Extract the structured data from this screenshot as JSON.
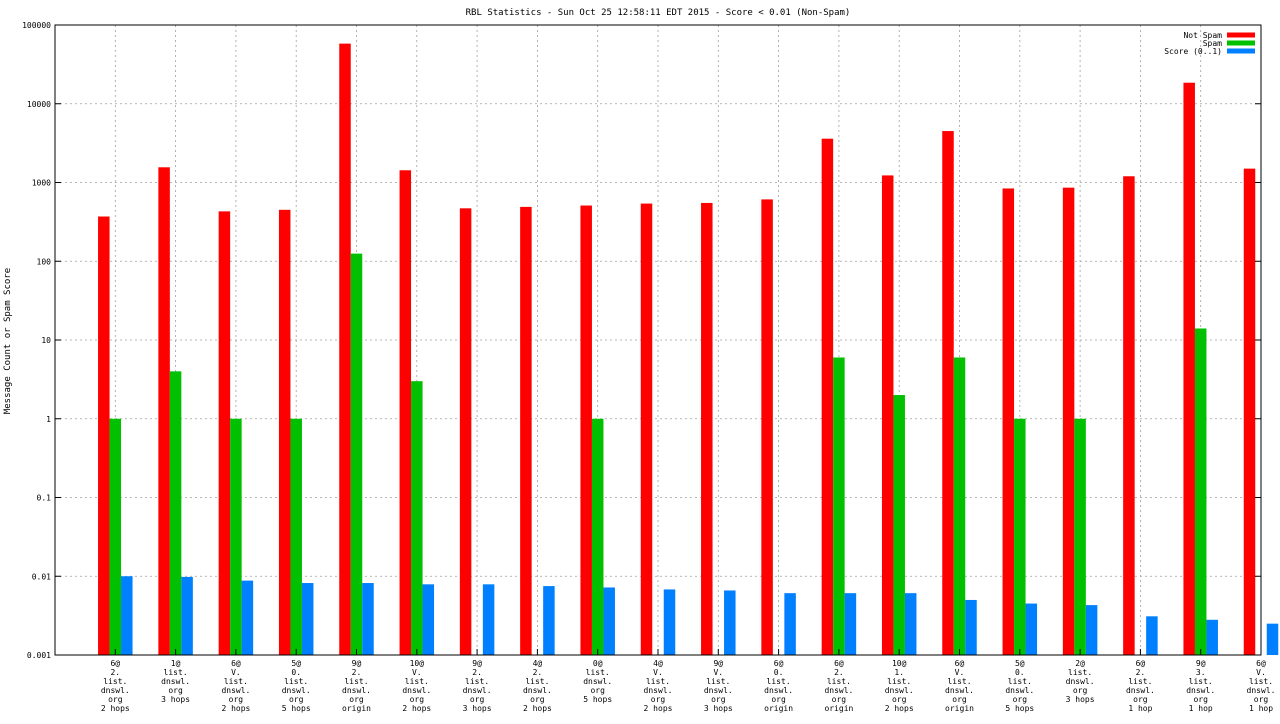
{
  "chart_data": {
    "type": "bar",
    "title": "RBL Statistics - Sun Oct 25 12:58:11 EDT 2015 - Score < 0.01 (Non-Spam)",
    "ylabel": "Message Count or Spam Score",
    "xlabel": "",
    "yscale": "log",
    "ylim": [
      0.001,
      100000
    ],
    "yticks": [
      "0.001",
      "0.01",
      "0.1",
      "1",
      "10",
      "100",
      "1000",
      "10000",
      "100000"
    ],
    "grid": true,
    "legend_position": "top-right",
    "categories": [
      [
        "6@",
        "2.",
        "list.",
        "dnswl.",
        "org",
        "2 hops"
      ],
      [
        "1@",
        "list.",
        "dnswl.",
        "org",
        "3 hops"
      ],
      [
        "6@",
        "V.",
        "list.",
        "dnswl.",
        "org",
        "2 hops"
      ],
      [
        "5@",
        "0.",
        "list.",
        "dnswl.",
        "org",
        "5 hops"
      ],
      [
        "9@",
        "2.",
        "list.",
        "dnswl.",
        "org",
        "origin"
      ],
      [
        "10@",
        "V.",
        "list.",
        "dnswl.",
        "org",
        "2 hops"
      ],
      [
        "9@",
        "2.",
        "list.",
        "dnswl.",
        "org",
        "3 hops"
      ],
      [
        "4@",
        "2.",
        "list.",
        "dnswl.",
        "org",
        "2 hops"
      ],
      [
        "0@",
        "list.",
        "dnswl.",
        "org",
        "5 hops"
      ],
      [
        "4@",
        "V.",
        "list.",
        "dnswl.",
        "org",
        "2 hops"
      ],
      [
        "9@",
        "V.",
        "list.",
        "dnswl.",
        "org",
        "3 hops"
      ],
      [
        "6@",
        "0.",
        "list.",
        "dnswl.",
        "org",
        "origin"
      ],
      [
        "6@",
        "2.",
        "list.",
        "dnswl.",
        "org",
        "origin"
      ],
      [
        "10@",
        "1.",
        "list.",
        "dnswl.",
        "org",
        "2 hops"
      ],
      [
        "6@",
        "V.",
        "list.",
        "dnswl.",
        "org",
        "origin"
      ],
      [
        "5@",
        "0.",
        "list.",
        "dnswl.",
        "org",
        "5 hops"
      ],
      [
        "2@",
        "list.",
        "dnswl.",
        "org",
        "3 hops"
      ],
      [
        "6@",
        "2.",
        "list.",
        "dnswl.",
        "org",
        "1 hop"
      ],
      [
        "9@",
        "3.",
        "list.",
        "dnswl.",
        "org",
        "1 hop"
      ],
      [
        "6@",
        "V.",
        "list.",
        "dnswl.",
        "org",
        "1 hop"
      ]
    ],
    "series": [
      {
        "name": "Not Spam",
        "color": "#ff0000",
        "values": [
          370,
          1560,
          430,
          450,
          58000,
          1430,
          470,
          490,
          510,
          540,
          550,
          610,
          3600,
          1230,
          4500,
          840,
          860,
          1200,
          18500,
          1500
        ]
      },
      {
        "name": "Spam",
        "color": "#00c000",
        "values": [
          1,
          4,
          1,
          1,
          125,
          3,
          null,
          null,
          1,
          null,
          null,
          null,
          6,
          2,
          6,
          1,
          1,
          null,
          14,
          null
        ]
      },
      {
        "name": "Score (0..1)",
        "color": "#0080ff",
        "values": [
          0.01,
          0.0098,
          0.0088,
          0.0082,
          0.0082,
          0.0079,
          0.0079,
          0.0075,
          0.0072,
          0.0068,
          0.0066,
          0.0061,
          0.0061,
          0.0061,
          0.005,
          0.0045,
          0.0043,
          0.0031,
          0.0028,
          0.0025
        ]
      }
    ]
  }
}
